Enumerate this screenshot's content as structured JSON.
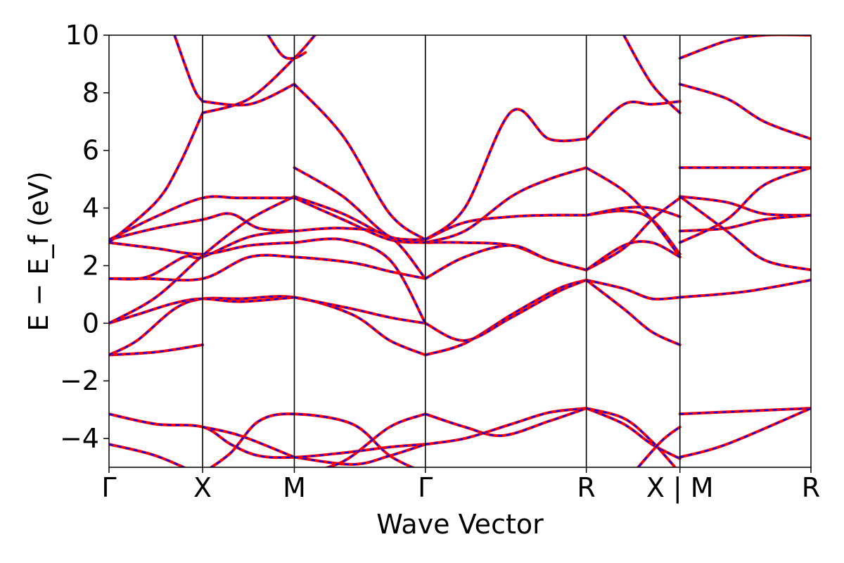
{
  "chart_data": {
    "type": "line",
    "xlabel": "Wave Vector",
    "ylabel": "E − E_f (eV)",
    "ylim": [
      -5,
      10
    ],
    "yticks": [
      -4,
      -2,
      0,
      2,
      4,
      6,
      8,
      10
    ],
    "ytick_labels": [
      "−4",
      "−2",
      "0",
      "2",
      "4",
      "6",
      "8",
      "10"
    ],
    "xlim": [
      0,
      7.5
    ],
    "kpoints": [
      {
        "label": "Γ",
        "x": 0.0
      },
      {
        "label": "X",
        "x": 1.0
      },
      {
        "label": "M",
        "x": 1.98
      },
      {
        "label": "Γ",
        "x": 3.38
      },
      {
        "label": "R",
        "x": 5.1
      },
      {
        "label": "X | M",
        "x": 6.1
      },
      {
        "label": "R",
        "x": 7.5
      }
    ],
    "grid": false,
    "legend": "none",
    "series_colors": {
      "line": "#ff0000",
      "dash": "#0000ff"
    },
    "bands": [
      {
        "x": [
          0,
          0.5,
          1.0
        ],
        "y": [
          -4.2,
          -4.6,
          -5.3
        ]
      },
      {
        "x": [
          0,
          0.5,
          1.0,
          1.3,
          1.6,
          1.98,
          2.5,
          3.0,
          3.38
        ],
        "y": [
          -3.15,
          -3.5,
          -3.6,
          -4.2,
          -4.6,
          -4.65,
          -4.5,
          -4.3,
          -4.2
        ]
      },
      {
        "x": [
          1.0,
          1.4,
          1.98
        ],
        "y": [
          -3.6,
          -3.9,
          -4.65
        ]
      },
      {
        "x": [
          1.0,
          1.3,
          1.6,
          1.98,
          2.6,
          3.0,
          3.38
        ],
        "y": [
          -5.2,
          -4.5,
          -3.4,
          -3.15,
          -3.5,
          -4.6,
          -5.2
        ]
      },
      {
        "x": [
          1.98,
          2.6,
          3.0,
          3.38
        ],
        "y": [
          -4.65,
          -4.9,
          -4.6,
          -4.2
        ]
      },
      {
        "x": [
          1.98,
          2.5,
          3.0,
          3.38
        ],
        "y": [
          -5.3,
          -4.8,
          -3.6,
          -3.15
        ]
      },
      {
        "x": [
          3.38,
          3.8,
          4.3,
          4.7,
          5.1
        ],
        "y": [
          -4.2,
          -4.0,
          -3.5,
          -3.1,
          -2.95
        ]
      },
      {
        "x": [
          3.38,
          3.8,
          4.2,
          4.7,
          5.1
        ],
        "y": [
          -3.15,
          -3.6,
          -3.9,
          -3.4,
          -2.95
        ]
      },
      {
        "x": [
          5.1,
          5.5,
          5.8,
          6.1
        ],
        "y": [
          -2.95,
          -3.5,
          -4.2,
          -4.7
        ]
      },
      {
        "x": [
          5.1,
          5.5,
          5.8,
          6.1
        ],
        "y": [
          -2.95,
          -3.3,
          -4.1,
          -5.2
        ]
      },
      {
        "x": [
          5.6,
          5.9,
          6.1
        ],
        "y": [
          -5.2,
          -4.1,
          -3.6
        ]
      },
      {
        "x": [
          6.1,
          6.8,
          7.5
        ],
        "y": [
          -3.15,
          -3.05,
          -2.95
        ]
      },
      {
        "x": [
          6.1,
          6.6,
          7.5
        ],
        "y": [
          -4.65,
          -4.2,
          -2.95
        ]
      },
      {
        "x": [
          0,
          0.5,
          1.0
        ],
        "y": [
          -1.1,
          -1.0,
          -0.75
        ]
      },
      {
        "x": [
          0,
          0.3,
          0.7,
          1.0,
          1.4,
          1.98,
          2.6,
          3.0,
          3.38
        ],
        "y": [
          -1.1,
          -0.6,
          0.5,
          0.85,
          0.85,
          0.9,
          0.3,
          -0.6,
          -1.1
        ]
      },
      {
        "x": [
          0,
          0.3,
          0.7,
          1.0,
          1.4,
          1.98
        ],
        "y": [
          0.0,
          0.3,
          0.7,
          0.85,
          0.75,
          0.9
        ]
      },
      {
        "x": [
          1.98,
          2.6,
          3.0,
          3.38
        ],
        "y": [
          0.9,
          0.5,
          0.2,
          0.0
        ]
      },
      {
        "x": [
          3.38,
          3.8,
          4.3,
          4.8,
          5.1
        ],
        "y": [
          -1.1,
          -0.7,
          0.3,
          1.2,
          1.5
        ]
      },
      {
        "x": [
          3.38,
          3.8,
          4.3,
          4.8,
          5.1
        ],
        "y": [
          0.0,
          -0.6,
          0.2,
          1.1,
          1.5
        ]
      },
      {
        "x": [
          5.1,
          5.5,
          5.8,
          6.1
        ],
        "y": [
          1.5,
          1.2,
          0.85,
          0.9
        ]
      },
      {
        "x": [
          5.1,
          5.5,
          5.8,
          6.1
        ],
        "y": [
          1.5,
          0.5,
          -0.3,
          -0.75
        ]
      },
      {
        "x": [
          6.1,
          6.8,
          7.5
        ],
        "y": [
          0.9,
          1.1,
          1.5
        ]
      },
      {
        "x": [
          0,
          0.4,
          1.0,
          1.5,
          1.98,
          2.6,
          3.0,
          3.38
        ],
        "y": [
          1.55,
          1.55,
          1.55,
          2.3,
          2.3,
          2.1,
          1.8,
          1.55
        ]
      },
      {
        "x": [
          0,
          0.4,
          0.8,
          1.0,
          1.5,
          1.98
        ],
        "y": [
          1.55,
          1.6,
          2.3,
          2.3,
          3.0,
          3.2
        ]
      },
      {
        "x": [
          0,
          0.5,
          1.0,
          1.5,
          1.98
        ],
        "y": [
          2.8,
          2.6,
          2.4,
          2.7,
          2.8
        ]
      },
      {
        "x": [
          0,
          0.5,
          1.0,
          1.3,
          1.6,
          1.98
        ],
        "y": [
          2.9,
          3.3,
          3.6,
          3.8,
          3.3,
          3.2
        ]
      },
      {
        "x": [
          0,
          0.5,
          1.0,
          1.4,
          1.98
        ],
        "y": [
          2.9,
          3.7,
          4.35,
          4.35,
          4.35
        ]
      },
      {
        "x": [
          0,
          0.5,
          1.0,
          1.5,
          1.98
        ],
        "y": [
          0.0,
          0.9,
          2.35,
          3.6,
          4.4
        ]
      },
      {
        "x": [
          1.98,
          2.5,
          3.0,
          3.38
        ],
        "y": [
          4.4,
          3.8,
          3.0,
          2.9
        ]
      },
      {
        "x": [
          1.98,
          2.5,
          3.0,
          3.38
        ],
        "y": [
          4.35,
          3.6,
          2.9,
          2.8
        ]
      },
      {
        "x": [
          1.98,
          2.5,
          3.0,
          3.38
        ],
        "y": [
          3.2,
          3.3,
          3.0,
          1.55
        ]
      },
      {
        "x": [
          1.98,
          2.5,
          3.0,
          3.38
        ],
        "y": [
          2.8,
          2.9,
          2.2,
          0.0
        ]
      },
      {
        "x": [
          3.38,
          3.8,
          4.3,
          4.7,
          5.1
        ],
        "y": [
          2.8,
          2.8,
          2.7,
          2.2,
          1.85
        ]
      },
      {
        "x": [
          3.38,
          3.8,
          4.3,
          4.7,
          5.1
        ],
        "y": [
          2.9,
          3.5,
          3.7,
          3.75,
          3.75
        ]
      },
      {
        "x": [
          3.38,
          3.8,
          4.3,
          4.7,
          5.1
        ],
        "y": [
          2.8,
          3.2,
          4.4,
          5.0,
          5.4
        ]
      },
      {
        "x": [
          3.38,
          3.8,
          4.3,
          4.7,
          5.1
        ],
        "y": [
          1.55,
          2.3,
          2.7,
          2.2,
          1.85
        ]
      },
      {
        "x": [
          5.1,
          5.5,
          5.8,
          6.1
        ],
        "y": [
          1.85,
          2.6,
          3.6,
          4.35
        ]
      },
      {
        "x": [
          5.1,
          5.5,
          5.8,
          6.1
        ],
        "y": [
          3.75,
          3.9,
          3.6,
          2.4
        ]
      },
      {
        "x": [
          5.1,
          5.5,
          5.8,
          6.1
        ],
        "y": [
          5.4,
          4.6,
          3.6,
          2.3
        ]
      },
      {
        "x": [
          5.1,
          5.5,
          5.8,
          6.1
        ],
        "y": [
          1.85,
          2.7,
          2.8,
          2.3
        ]
      },
      {
        "x": [
          5.1,
          5.5,
          5.8,
          6.1
        ],
        "y": [
          3.75,
          4.0,
          4.0,
          3.7
        ]
      },
      {
        "x": [
          6.1,
          6.6,
          7.0,
          7.5
        ],
        "y": [
          5.4,
          5.4,
          5.4,
          5.4
        ]
      },
      {
        "x": [
          6.1,
          6.6,
          7.0,
          7.5
        ],
        "y": [
          4.4,
          4.2,
          3.8,
          3.75
        ]
      },
      {
        "x": [
          6.1,
          6.6,
          7.0,
          7.5
        ],
        "y": [
          3.2,
          3.3,
          3.6,
          3.75
        ]
      },
      {
        "x": [
          6.1,
          6.6,
          7.0,
          7.5
        ],
        "y": [
          2.8,
          3.6,
          4.8,
          5.4
        ]
      },
      {
        "x": [
          6.1,
          6.6,
          7.0,
          7.5
        ],
        "y": [
          4.4,
          3.2,
          2.2,
          1.85
        ]
      },
      {
        "x": [
          0,
          0.5,
          0.75,
          1.0
        ],
        "y": [
          2.8,
          4.2,
          5.5,
          7.3
        ]
      },
      {
        "x": [
          0.7,
          0.9,
          1.0
        ],
        "y": [
          10.0,
          8.2,
          7.7
        ]
      },
      {
        "x": [
          1.0,
          1.5,
          1.98
        ],
        "y": [
          7.7,
          7.6,
          8.3
        ]
      },
      {
        "x": [
          1.0,
          1.5,
          1.98,
          2.2
        ],
        "y": [
          7.3,
          7.8,
          9.2,
          10.0
        ]
      },
      {
        "x": [
          1.7,
          1.85,
          1.98,
          2.1
        ],
        "y": [
          10.0,
          9.3,
          9.2,
          9.4
        ]
      },
      {
        "x": [
          1.98,
          2.5,
          3.0,
          3.38
        ],
        "y": [
          8.3,
          6.5,
          3.8,
          2.9
        ]
      },
      {
        "x": [
          1.98,
          2.5,
          3.0,
          3.38
        ],
        "y": [
          5.4,
          4.4,
          3.0,
          2.8
        ]
      },
      {
        "x": [
          3.38,
          3.8,
          4.3,
          4.7,
          5.1
        ],
        "y": [
          2.9,
          4.0,
          7.35,
          6.4,
          6.4
        ]
      },
      {
        "x": [
          5.1,
          5.5,
          5.8,
          6.1
        ],
        "y": [
          6.4,
          7.6,
          7.6,
          7.7
        ]
      },
      {
        "x": [
          5.5,
          5.8,
          6.1
        ],
        "y": [
          10.0,
          8.3,
          7.3
        ]
      },
      {
        "x": [
          6.1,
          6.6,
          7.0,
          7.5
        ],
        "y": [
          9.2,
          9.8,
          10.0,
          10.0
        ]
      },
      {
        "x": [
          6.1,
          6.6,
          7.0,
          7.5
        ],
        "y": [
          8.3,
          7.8,
          7.0,
          6.4
        ]
      }
    ]
  }
}
